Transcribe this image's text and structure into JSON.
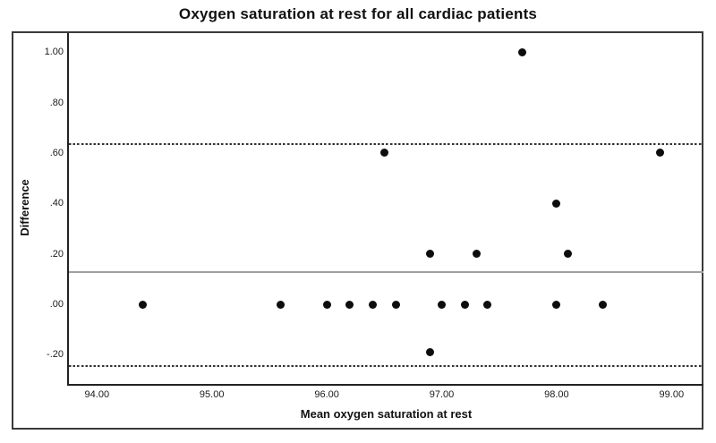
{
  "chart_data": {
    "type": "scatter",
    "title": "Oxygen saturation at rest for all cardiac patients",
    "xlabel": "Mean oxygen saturation at rest",
    "ylabel": "Difference",
    "xlim": [
      93.74,
      99.28
    ],
    "ylim": [
      -0.32,
      1.08
    ],
    "grid": false,
    "legend": "none",
    "x_ticks": [
      {
        "label": "94.00",
        "value": 94.0
      },
      {
        "label": "95.00",
        "value": 95.0
      },
      {
        "label": "96.00",
        "value": 96.0
      },
      {
        "label": "97.00",
        "value": 97.0
      },
      {
        "label": "98.00",
        "value": 98.0
      },
      {
        "label": "99.00",
        "value": 99.0
      }
    ],
    "y_ticks": [
      {
        "label": "1.00",
        "value": 1.0
      },
      {
        "label": ".80",
        "value": 0.8
      },
      {
        "label": ".60",
        "value": 0.6
      },
      {
        "label": ".40",
        "value": 0.4
      },
      {
        "label": ".20",
        "value": 0.2
      },
      {
        "label": ".00",
        "value": 0.0
      },
      {
        "label": "-.20",
        "value": -0.2
      }
    ],
    "points": [
      [
        94.4,
        0.0
      ],
      [
        95.6,
        0.0
      ],
      [
        96.0,
        0.0
      ],
      [
        96.2,
        0.0
      ],
      [
        96.4,
        0.0
      ],
      [
        96.6,
        0.0
      ],
      [
        97.0,
        0.0
      ],
      [
        97.2,
        0.0
      ],
      [
        97.4,
        0.0
      ],
      [
        98.0,
        0.0
      ],
      [
        98.4,
        0.0
      ],
      [
        96.9,
        0.2
      ],
      [
        97.3,
        0.2
      ],
      [
        98.1,
        0.2
      ],
      [
        98.0,
        0.4
      ],
      [
        96.5,
        0.6
      ],
      [
        98.9,
        0.6
      ],
      [
        97.7,
        1.0
      ],
      [
        96.9,
        -0.19
      ]
    ],
    "reference_lines": [
      {
        "name": "upper-limit-line",
        "value": 0.635,
        "style": "dashed"
      },
      {
        "name": "mean-line",
        "value": 0.127,
        "style": "solid"
      },
      {
        "name": "lower-limit-line",
        "value": -0.245,
        "style": "dashed"
      }
    ],
    "colors": {
      "point": "#0d0d0d",
      "mean_line": "#a0a0a0",
      "limit_line": "#333333",
      "axis": "#222222",
      "frame_border": "#3a3a3a",
      "text": "#111111",
      "background": "#ffffff"
    }
  }
}
